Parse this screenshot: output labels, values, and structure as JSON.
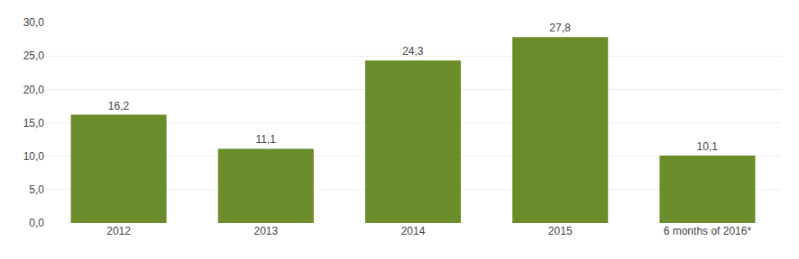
{
  "chart_data": {
    "type": "bar",
    "categories": [
      "2012",
      "2013",
      "2014",
      "2015",
      "6 months of 2016*"
    ],
    "values": [
      16.2,
      11.1,
      24.3,
      27.8,
      10.1
    ],
    "value_labels": [
      "16,2",
      "11,1",
      "24,3",
      "27,8",
      "10,1"
    ],
    "color": "#6b8c2a",
    "ylim": [
      0,
      30
    ],
    "yticks": [
      {
        "value": 0,
        "label": "0,0"
      },
      {
        "value": 5,
        "label": "5,0"
      },
      {
        "value": 10,
        "label": "10,0"
      },
      {
        "value": 15,
        "label": "15,0"
      },
      {
        "value": 20,
        "label": "20,0"
      },
      {
        "value": 25,
        "label": "25,0"
      },
      {
        "value": 30,
        "label": "30,0"
      }
    ],
    "grid": true,
    "data_labels": true
  }
}
